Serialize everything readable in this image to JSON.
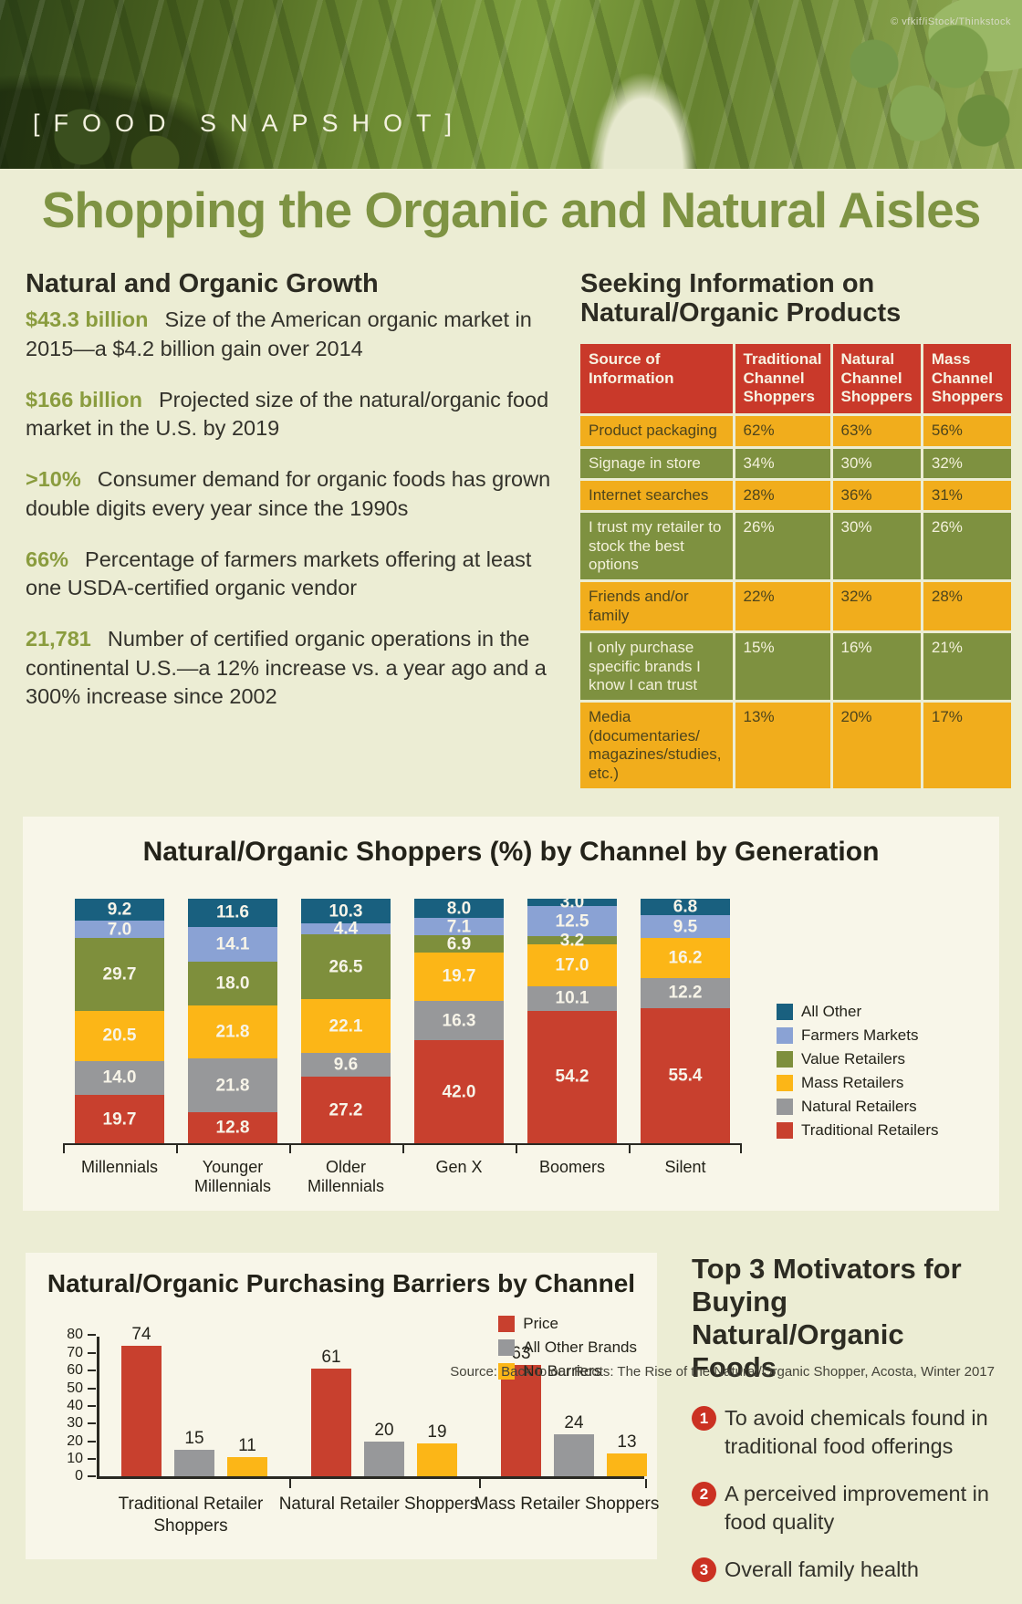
{
  "header": {
    "credit": "© vfkif/iStock/Thinkstock",
    "kicker": "[FOOD SNAPSHOT]",
    "title": "Shopping the Organic and Natural Aisles"
  },
  "growth": {
    "heading": "Natural and Organic Growth",
    "items": [
      {
        "stat": "$43.3 billion",
        "text": "Size of the American organic market in 2015—a $4.2 billion gain over 2014"
      },
      {
        "stat": "$166 billion",
        "text": "Projected size of the natural/organic food market in the U.S. by 2019"
      },
      {
        "stat": ">10%",
        "text": "Consumer demand for organic foods has grown double digits every year since the 1990s"
      },
      {
        "stat": "66%",
        "text": "Percentage of farmers markets offering at least one USDA-certified organic vendor"
      },
      {
        "stat": "21,781",
        "text": "Number of certified organic operations in the continental U.S.—a 12% increase vs. a year ago and a 300% increase since 2002"
      }
    ]
  },
  "info_table": {
    "heading": "Seeking Information on Natural/Organic Products",
    "columns": [
      "Source of Information",
      "Traditional Channel Shoppers",
      "Natural Channel Shoppers",
      "Mass Channel Shoppers"
    ],
    "rows": [
      {
        "label": "Product packaging",
        "values": [
          "62%",
          "63%",
          "56%"
        ]
      },
      {
        "label": "Signage in store",
        "values": [
          "34%",
          "30%",
          "32%"
        ]
      },
      {
        "label": "Internet searches",
        "values": [
          "28%",
          "36%",
          "31%"
        ]
      },
      {
        "label": "I trust my retailer to stock the best options",
        "values": [
          "26%",
          "30%",
          "26%"
        ]
      },
      {
        "label": "Friends and/or family",
        "values": [
          "22%",
          "32%",
          "28%"
        ]
      },
      {
        "label": "I only purchase specific brands I know I can trust",
        "values": [
          "15%",
          "16%",
          "21%"
        ]
      },
      {
        "label": "Media (documentaries/ magazines/studies, etc.)",
        "values": [
          "13%",
          "20%",
          "17%"
        ]
      }
    ]
  },
  "chart_data": [
    {
      "type": "bar",
      "stacked": true,
      "title": "Natural/Organic Shoppers (%) by Channel by Generation",
      "categories": [
        "Millennials",
        "Younger Millennials",
        "Older Millennials",
        "Gen X",
        "Boomers",
        "Silent"
      ],
      "series": [
        {
          "name": "Traditional Retailers",
          "color": "#c8402e",
          "values": [
            19.7,
            12.8,
            27.2,
            42.0,
            54.2,
            55.4
          ]
        },
        {
          "name": "Natural Retailers",
          "color": "#97989a",
          "values": [
            14.0,
            21.8,
            9.6,
            16.3,
            10.1,
            12.2
          ]
        },
        {
          "name": "Mass Retailers",
          "color": "#fcb617",
          "values": [
            20.5,
            21.8,
            22.1,
            19.7,
            17.0,
            16.2
          ]
        },
        {
          "name": "Value Retailers",
          "color": "#7e8f3c",
          "values": [
            29.7,
            18.0,
            26.5,
            6.9,
            3.2,
            0
          ]
        },
        {
          "name": "Farmers Markets",
          "color": "#8aa2d4",
          "values": [
            7.0,
            14.1,
            4.4,
            7.1,
            12.5,
            9.5
          ]
        },
        {
          "name": "All Other",
          "color": "#19607f",
          "values": [
            9.2,
            11.6,
            10.3,
            8.0,
            3.0,
            6.8
          ]
        }
      ],
      "legend_order": [
        "All Other",
        "Farmers Markets",
        "Value Retailers",
        "Mass Retailers",
        "Natural Retailers",
        "Traditional Retailers"
      ],
      "legend_position": "right",
      "ylim": [
        0,
        100
      ],
      "grid": false
    },
    {
      "type": "bar",
      "grouped": true,
      "title": "Natural/Organic Purchasing Barriers by Channel",
      "categories": [
        "Traditional Retailer Shoppers",
        "Natural Retailer Shoppers",
        "Mass Retailer Shoppers"
      ],
      "series": [
        {
          "name": "Price",
          "color": "#c8402e",
          "values": [
            74,
            61,
            63
          ]
        },
        {
          "name": "All Other Brands",
          "color": "#97989a",
          "values": [
            15,
            20,
            24
          ]
        },
        {
          "name": "No Barriers",
          "color": "#fcb617",
          "values": [
            11,
            19,
            13
          ]
        }
      ],
      "ylim": [
        0,
        80
      ],
      "yticks": [
        0,
        10,
        20,
        30,
        40,
        50,
        60,
        70,
        80
      ],
      "legend_position": "top-right",
      "grid": false
    }
  ],
  "motivators": {
    "heading": "Top 3 Motivators for Buying Natural/Organic Foods",
    "items": [
      {
        "num": "1",
        "text": "To avoid chemicals found in traditional food offerings"
      },
      {
        "num": "2",
        "text": "A perceived improvement in food quality"
      },
      {
        "num": "3",
        "text": "Overall family health"
      }
    ]
  },
  "source": "Source: Back to our Roots: The Rise of the Natural/Organic Shopper, Acosta, Winter 2017",
  "colors": {
    "page_bg": "#ecedd4",
    "panel_bg": "#f8f6e9",
    "title_green": "#7e9343",
    "stat_green": "#8a9c3e",
    "table_red": "#c9392a",
    "table_yellow": "#f1ad1c",
    "table_green": "#7e9140",
    "bar_red": "#c8402e",
    "bar_gray": "#97989a",
    "bar_yellow": "#fcb617",
    "bar_green": "#7e8f3c",
    "bar_lightblue": "#8aa2d4",
    "bar_darkblue": "#19607f",
    "motivator_red": "#cb3122"
  }
}
